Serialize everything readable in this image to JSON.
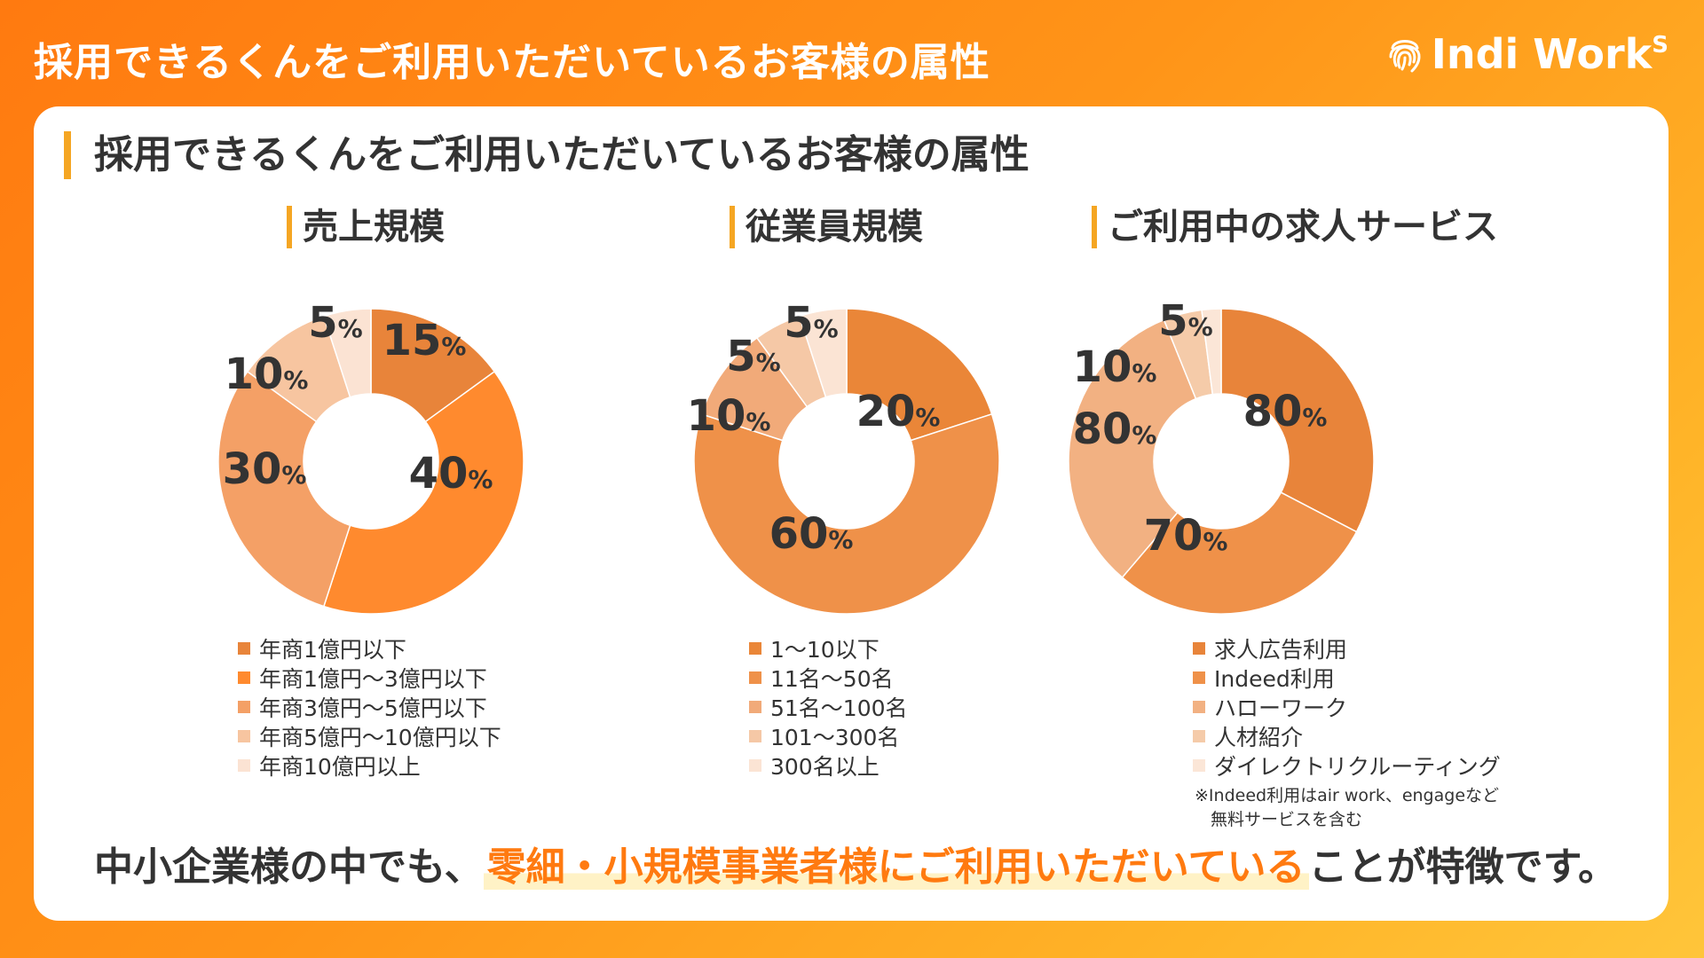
{
  "header": {
    "title": "採用できるくんをご利用いただいているお客様の属性",
    "logo_text": "Indi Work",
    "logo_sup": "S"
  },
  "card": {
    "title": "採用できるくんをご利用いただいているお客様の属性",
    "bottom_prefix": "中小企業様の中でも、",
    "bottom_highlight": "零細・小規模事業者様にご利用いただいている",
    "bottom_suffix": "ことが特徴です。"
  },
  "charts": {
    "sales": {
      "title": "売上規模"
    },
    "employees": {
      "title": "従業員規模"
    },
    "services": {
      "title": "ご利用中の求人サービス",
      "footnote_line1": "※Indeed利用はair work、engageなど",
      "footnote_line2": "無料サービスを含む"
    }
  },
  "colors": {
    "background": "#ff8a14",
    "accent_bar": "#f5a623",
    "highlight_text": "#ff7a10",
    "highlight_marker": "#fff2c6",
    "text": "#333333"
  },
  "chart_data": [
    {
      "type": "pie",
      "title": "売上規模",
      "categories": [
        "年商1億円以下",
        "年商1億円～3億円以下",
        "年商3億円～5億円以下",
        "年商5億円～10億円以下",
        "年商10億円以上"
      ],
      "values": [
        15,
        40,
        30,
        10,
        5
      ],
      "unit": "%",
      "colors": [
        "#e8843a",
        "#ff8a2e",
        "#f4a066",
        "#f7c5a0",
        "#fbe3d3"
      ],
      "legend": "bottom"
    },
    {
      "type": "pie",
      "title": "従業員規模",
      "categories": [
        "1～10以下",
        "11名～50名",
        "51名～100名",
        "101～300名",
        "300名以上"
      ],
      "values": [
        20,
        60,
        10,
        5,
        5
      ],
      "unit": "%",
      "colors": [
        "#ea8638",
        "#ef9149",
        "#f1aa79",
        "#f5c8a6",
        "#fbe4d4"
      ],
      "legend": "bottom"
    },
    {
      "type": "pie",
      "title": "ご利用中の求人サービス",
      "categories": [
        "求人広告利用",
        "Indeed利用",
        "ハローワーク",
        "人材紹介",
        "ダイレクトリクルーティング"
      ],
      "values": [
        80,
        70,
        80,
        10,
        5
      ],
      "unit": "%",
      "colors": [
        "#e8843a",
        "#ef9149",
        "#f2b182",
        "#f5cba9",
        "#fbe6d7"
      ],
      "legend": "bottom"
    }
  ]
}
